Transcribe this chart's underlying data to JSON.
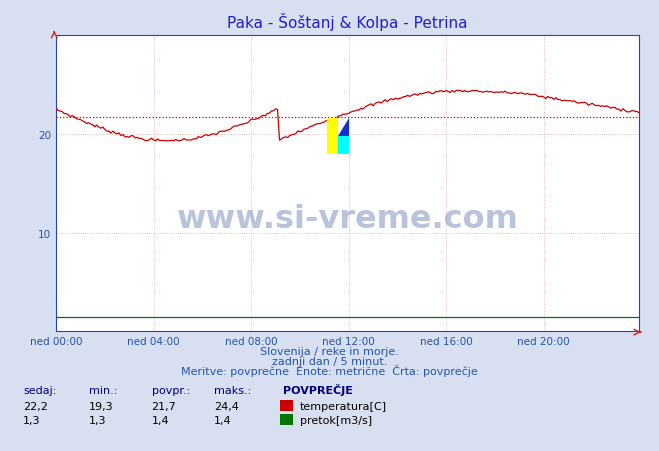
{
  "title": "Paka - Šoštanj & Kolpa - Petrina",
  "title_color": "#2020cc",
  "bg_color": "#d8dff0",
  "plot_bg_color": "#ffffff",
  "xlabel_ticks": [
    "ned 00:00",
    "ned 04:00",
    "ned 08:00",
    "ned 12:00",
    "ned 16:00",
    "ned 20:00"
  ],
  "xlabel_tick_positions": [
    0,
    48,
    96,
    144,
    192,
    240
  ],
  "yticks": [
    10,
    20
  ],
  "ylim": [
    0,
    30
  ],
  "xlim": [
    0,
    287
  ],
  "avg_line_value": 21.7,
  "avg_line_color": "#cc0000",
  "temp_line_color": "#cc0000",
  "flow_line_color": "#007700",
  "watermark_text": "www.si-vreme.com",
  "watermark_color": "#1a3a8a",
  "watermark_alpha": 0.3,
  "subtitle1": "Slovenija / reke in morje.",
  "subtitle2": "zadnji dan / 5 minut.",
  "subtitle3": "Meritve: povprečne  Enote: metrične  Črta: povprečje",
  "subtitle_color": "#2255aa",
  "table_header": [
    "sedaj:",
    "min.:",
    "povpr.:",
    "maks.:",
    "POVPREČJE"
  ],
  "table_row1": [
    "22,2",
    "19,3",
    "21,7",
    "24,4",
    "temperatura[C]"
  ],
  "table_row2": [
    "1,3",
    "1,3",
    "1,4",
    "1,4",
    "pretok[m3/s]"
  ],
  "table_color": "#000077",
  "n_points": 288,
  "temp_min": 19.3,
  "temp_max": 24.4,
  "temp_avg": 21.7,
  "flow_avg": 1.4
}
